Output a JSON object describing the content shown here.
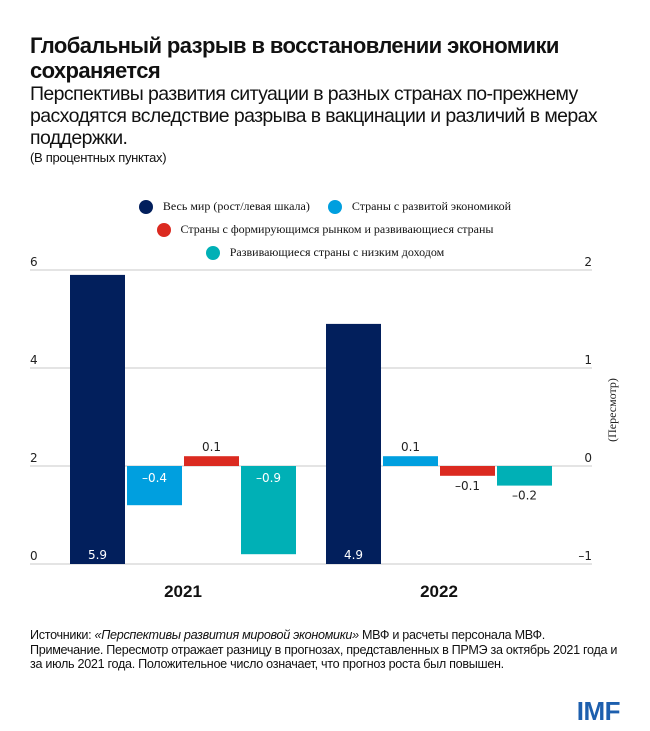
{
  "title": "Глобальный разрыв в восстановлении экономики сохраняется",
  "subtitle": "Перспективы развития ситуации в разных странах по-прежнему расходятся вследствие разрыва в вакцинации и различий в мерах поддержки.",
  "units": "(В процентных пунктах)",
  "chart_data": {
    "type": "bar",
    "categories": [
      "2021",
      "2022"
    ],
    "series": [
      {
        "name": "Весь мир (рост/левая шкала)",
        "color": "#021f5c",
        "axis": "left",
        "values": [
          5.9,
          4.9
        ],
        "labels": [
          "5.9",
          "4.9"
        ]
      },
      {
        "name": "Страны с развитой экономикой",
        "color": "#009fdf",
        "axis": "right",
        "values": [
          -0.4,
          0.1
        ],
        "labels": [
          "–0.4",
          "0.1"
        ]
      },
      {
        "name": "Страны с формирующимся рынком и развивающиеся страны",
        "color": "#db2a20",
        "axis": "right",
        "values": [
          0.1,
          -0.1
        ],
        "labels": [
          "0.1",
          "–0.1"
        ]
      },
      {
        "name": "Развивающиеся страны с низким доходом",
        "color": "#00b0b6",
        "axis": "right",
        "values": [
          -0.9,
          -0.2
        ],
        "labels": [
          "–0.9",
          "–0.2"
        ]
      }
    ],
    "left_axis": {
      "ylim": [
        0,
        6
      ],
      "ticks": [
        "0",
        "2",
        "4",
        "6"
      ]
    },
    "right_axis": {
      "ylim": [
        -1,
        2
      ],
      "ticks": [
        "–1",
        "0",
        "1",
        "2"
      ],
      "label": "(Пересмотр)"
    },
    "grid": true,
    "legend_position": "top"
  },
  "notes": {
    "sources_prefix": "Источники: ",
    "sources_italic": "«Перспективы развития мировой экономики»",
    "sources_suffix": " МВФ и расчеты персонала МВФ.",
    "note": "Примечание. Пересмотр отражает разницу в прогнозах, представленных в ПРМЭ за октябрь 2021 года и за июль 2021 года. Положительное число означает, что прогноз роста был повышен."
  },
  "logo": "IMF"
}
